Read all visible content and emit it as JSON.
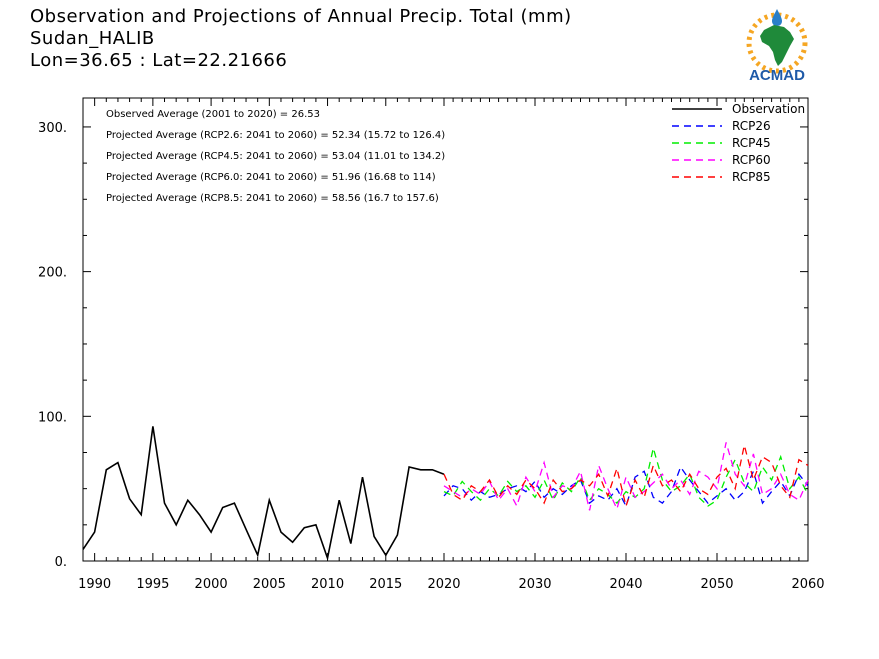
{
  "header": {
    "title": "Observation and Projections of Annual Precip. Total (mm)",
    "location": "Sudan_HALIB",
    "coords": "Lon=36.65 : Lat=22.21666"
  },
  "logo": {
    "text": "ACMAD"
  },
  "chart_data": {
    "type": "line",
    "title": "Observation and Projections of Annual Precip. Total (mm)",
    "xlabel": "",
    "ylabel": "",
    "xlim": [
      1989,
      2060
    ],
    "ylim": [
      0,
      320
    ],
    "grid": false,
    "legend_position": "top-right",
    "x_ticks": [
      1990,
      1995,
      2000,
      2005,
      2010,
      2015,
      2020,
      2030,
      2040,
      2050,
      2060
    ],
    "y_ticks": [
      {
        "value": 0,
        "label": "0."
      },
      {
        "value": 100,
        "label": "100."
      },
      {
        "value": 200,
        "label": "200."
      },
      {
        "value": 300,
        "label": "300."
      }
    ],
    "annotations": [
      "Observed Average (2001 to 2020) = 26.53",
      "Projected Average (RCP2.6: 2041 to 2060) = 52.34 (15.72 to 126.4)",
      "Projected Average (RCP4.5: 2041 to 2060) = 53.04 (11.01 to 134.2)",
      "Projected Average (RCP6.0: 2041 to 2060) = 51.96 (16.68 to 114)",
      "Projected Average (RCP8.5: 2041 to 2060) = 58.56 (16.7 to 157.6)"
    ],
    "series": [
      {
        "name": "Observation",
        "color": "#000000",
        "dashed": false,
        "x": [
          1989,
          1990,
          1991,
          1992,
          1993,
          1994,
          1995,
          1996,
          1997,
          1998,
          1999,
          2000,
          2001,
          2002,
          2003,
          2004,
          2005,
          2006,
          2007,
          2008,
          2009,
          2010,
          2011,
          2012,
          2013,
          2014,
          2015,
          2016,
          2017,
          2018,
          2019,
          2020
        ],
        "y": [
          8,
          20,
          63,
          68,
          43,
          32,
          93,
          40,
          25,
          42,
          32,
          20,
          37,
          40,
          22,
          4,
          42,
          20,
          13,
          23,
          25,
          2,
          42,
          12,
          58,
          17,
          4,
          18,
          65,
          63,
          63,
          60
        ]
      },
      {
        "name": "RCP26",
        "color": "#0000ff",
        "dashed": true,
        "x": [
          2020,
          2021,
          2022,
          2023,
          2024,
          2025,
          2026,
          2027,
          2028,
          2029,
          2030,
          2031,
          2032,
          2033,
          2034,
          2035,
          2036,
          2037,
          2038,
          2039,
          2040,
          2041,
          2042,
          2043,
          2044,
          2045,
          2046,
          2047,
          2048,
          2049,
          2050,
          2051,
          2052,
          2053,
          2054,
          2055,
          2056,
          2057,
          2058,
          2059,
          2060
        ],
        "y": [
          45,
          52,
          50,
          42,
          48,
          44,
          46,
          50,
          52,
          48,
          55,
          44,
          50,
          46,
          52,
          56,
          40,
          45,
          42,
          50,
          38,
          58,
          62,
          44,
          40,
          48,
          65,
          56,
          48,
          40,
          45,
          50,
          42,
          48,
          62,
          40,
          48,
          55,
          45,
          60,
          52
        ]
      },
      {
        "name": "RCP45",
        "color": "#00ee00",
        "dashed": true,
        "x": [
          2020,
          2021,
          2022,
          2023,
          2024,
          2025,
          2026,
          2027,
          2028,
          2029,
          2030,
          2031,
          2032,
          2033,
          2034,
          2035,
          2036,
          2037,
          2038,
          2039,
          2040,
          2041,
          2042,
          2043,
          2044,
          2045,
          2046,
          2047,
          2048,
          2049,
          2050,
          2051,
          2052,
          2053,
          2054,
          2055,
          2056,
          2057,
          2058,
          2059,
          2060
        ],
        "y": [
          48,
          45,
          55,
          48,
          42,
          50,
          45,
          55,
          48,
          52,
          44,
          56,
          42,
          54,
          48,
          58,
          42,
          50,
          46,
          40,
          48,
          44,
          50,
          78,
          56,
          48,
          52,
          60,
          44,
          38,
          42,
          58,
          70,
          54,
          48,
          65,
          56,
          72,
          50,
          58,
          46
        ]
      },
      {
        "name": "RCP60",
        "color": "#ff00ff",
        "dashed": true,
        "x": [
          2020,
          2021,
          2022,
          2023,
          2024,
          2025,
          2026,
          2027,
          2028,
          2029,
          2030,
          2031,
          2032,
          2033,
          2034,
          2035,
          2036,
          2037,
          2038,
          2039,
          2040,
          2041,
          2042,
          2043,
          2044,
          2045,
          2046,
          2047,
          2048,
          2049,
          2050,
          2051,
          2052,
          2053,
          2054,
          2055,
          2056,
          2057,
          2058,
          2059,
          2060
        ],
        "y": [
          52,
          48,
          44,
          50,
          46,
          55,
          42,
          50,
          38,
          58,
          48,
          68,
          44,
          52,
          50,
          62,
          35,
          66,
          50,
          36,
          58,
          44,
          48,
          54,
          60,
          50,
          56,
          46,
          62,
          58,
          50,
          82,
          60,
          52,
          74,
          46,
          50,
          60,
          46,
          42,
          56
        ]
      },
      {
        "name": "RCP85",
        "color": "#ff0000",
        "dashed": true,
        "x": [
          2020,
          2021,
          2022,
          2023,
          2024,
          2025,
          2026,
          2027,
          2028,
          2029,
          2030,
          2031,
          2032,
          2033,
          2034,
          2035,
          2036,
          2037,
          2038,
          2039,
          2040,
          2041,
          2042,
          2043,
          2044,
          2045,
          2046,
          2047,
          2048,
          2049,
          2050,
          2051,
          2052,
          2053,
          2054,
          2055,
          2056,
          2057,
          2058,
          2059,
          2060
        ],
        "y": [
          60,
          46,
          42,
          52,
          48,
          56,
          44,
          52,
          46,
          56,
          50,
          40,
          56,
          48,
          50,
          56,
          52,
          60,
          45,
          64,
          38,
          56,
          44,
          66,
          52,
          56,
          48,
          60,
          50,
          46,
          58,
          64,
          50,
          80,
          56,
          72,
          68,
          52,
          44,
          70,
          66
        ]
      }
    ]
  }
}
